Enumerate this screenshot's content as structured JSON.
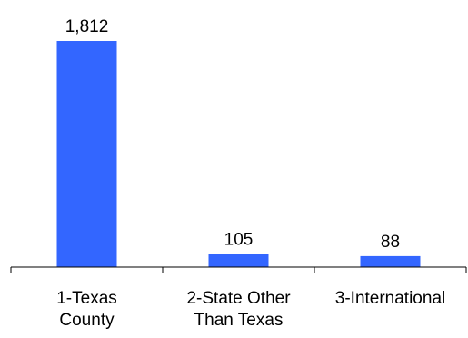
{
  "chart_data": {
    "type": "bar",
    "categories": [
      [
        "1-Texas",
        "County"
      ],
      [
        "2-State Other",
        "Than Texas"
      ],
      [
        "3-International"
      ]
    ],
    "values": [
      1812,
      105,
      88
    ],
    "data_labels": [
      "1,812",
      "105",
      "88"
    ],
    "title": "",
    "xlabel": "",
    "ylabel": "",
    "ylim": [
      0,
      1812
    ],
    "grid": false,
    "legend": "none",
    "colors": {
      "bar": "#3366ff",
      "axis": "#000000",
      "text": "#000000"
    }
  }
}
